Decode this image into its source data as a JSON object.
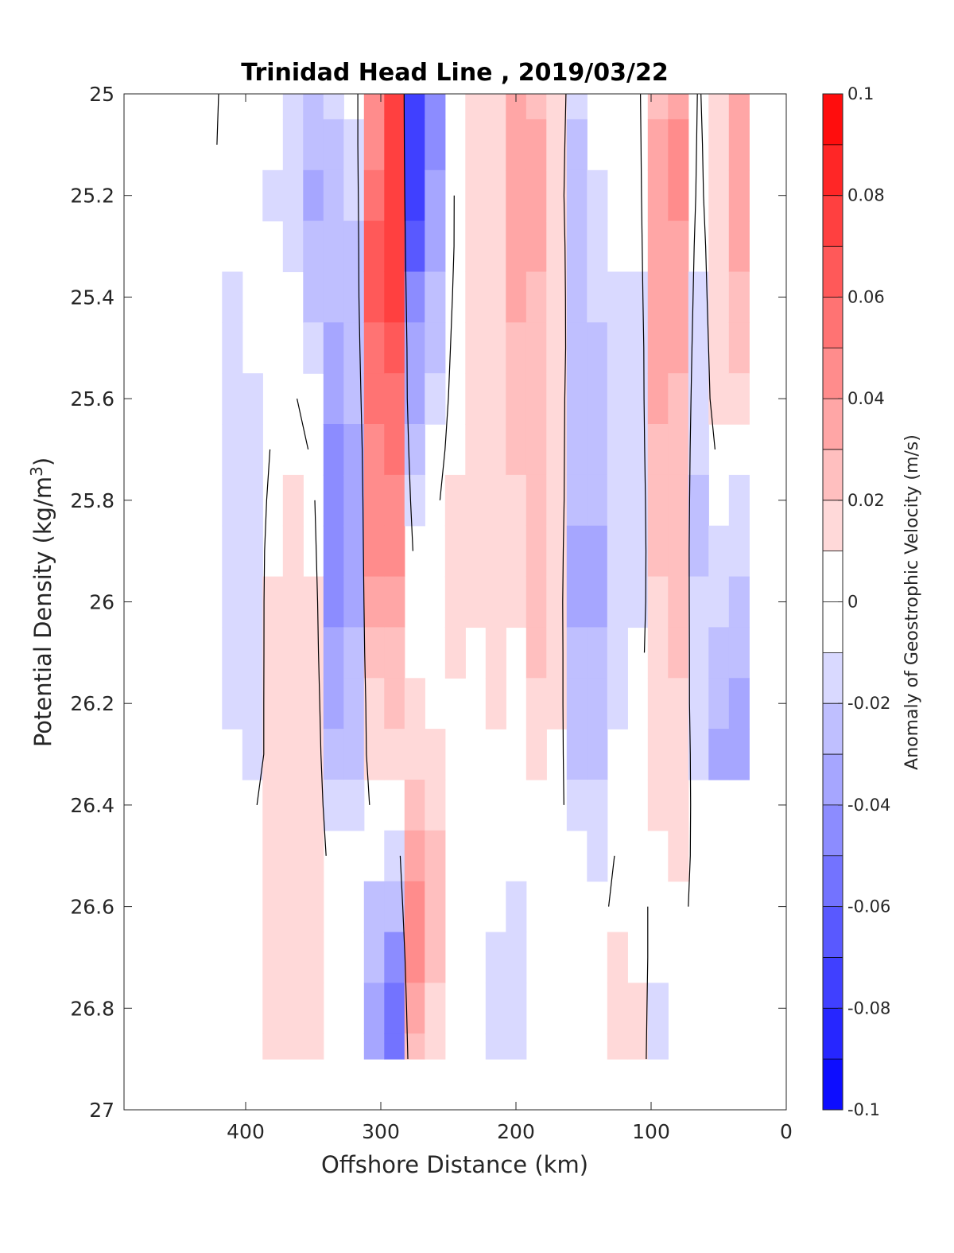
{
  "chart_data": {
    "type": "heatmap",
    "subtype": "filled-contour",
    "title": "Trinidad Head Line , 2019/03/22",
    "xlabel": "Offshore Distance (km)",
    "ylabel": "Potential Density (kg/m3)",
    "ylabel_parts": [
      "Potential Density (kg/m",
      "3",
      ")"
    ],
    "xlim": [
      490,
      0
    ],
    "x_reversed": true,
    "ylim": [
      25,
      27
    ],
    "y_reversed": true,
    "x_ticks": [
      400,
      300,
      200,
      100,
      0
    ],
    "x_tick_labels": [
      "400",
      "300",
      "200",
      "100",
      "0"
    ],
    "y_ticks": [
      25,
      25.2,
      25.4,
      25.6,
      25.8,
      26,
      26.2,
      26.4,
      26.6,
      26.8,
      27
    ],
    "y_tick_labels": [
      "25",
      "25.2",
      "25.4",
      "25.6",
      "25.8",
      "26",
      "26.2",
      "26.4",
      "26.6",
      "26.8",
      "27"
    ],
    "grid": false,
    "colorbar": {
      "label": "Anomaly of Geostrophic Velocity (m/s)",
      "range": [
        -0.1,
        0.1
      ],
      "levels": [
        -0.1,
        -0.09,
        -0.08,
        -0.07,
        -0.06,
        -0.05,
        -0.04,
        -0.03,
        -0.02,
        -0.01,
        0,
        0.01,
        0.02,
        0.03,
        0.04,
        0.05,
        0.06,
        0.07,
        0.08,
        0.09,
        0.1
      ],
      "tick_values": [
        0.1,
        0.08,
        0.06,
        0.04,
        0.02,
        0,
        -0.02,
        -0.04,
        -0.06,
        -0.08,
        -0.1
      ],
      "tick_labels": [
        "0.1",
        "0.08",
        "0.06",
        "0.04",
        "0.02",
        "0",
        "-0.02",
        "-0.04",
        "-0.06",
        "-0.08",
        "-0.1"
      ],
      "colormap": "blue-white-red",
      "color_low": "#0000ff",
      "color_mid": "#ffffff",
      "color_high": "#ff0000"
    },
    "data_extent": {
      "x": [
        440,
        30
      ],
      "y": [
        25,
        26.9
      ]
    },
    "x": [
      440,
      425,
      410,
      395,
      380,
      365,
      350,
      335,
      320,
      305,
      290,
      275,
      260,
      245,
      230,
      215,
      200,
      185,
      170,
      155,
      140,
      125,
      110,
      95,
      80,
      65,
      50,
      35
    ],
    "y": [
      25.0,
      25.1,
      25.2,
      25.3,
      25.4,
      25.5,
      25.6,
      25.7,
      25.8,
      25.9,
      26.0,
      26.1,
      26.2,
      26.3,
      26.4,
      26.5,
      26.6,
      26.7,
      26.8,
      26.9
    ],
    "column_profiles_note": "",
    "velocity_anomaly": [
      [
        0.008,
        0.008,
        0.008,
        0.008,
        0.008,
        0.006,
        0.004,
        0.002,
        0.0,
        0.0,
        0.0,
        0.0,
        0.0,
        0.0,
        0.0,
        0.0,
        0.0,
        0.0,
        0.0,
        0.0
      ],
      [
        0.002,
        0.002,
        0.0,
        0.0,
        0.0,
        0.0,
        0.0,
        0.0,
        0.0,
        0.0,
        0.0,
        0.0,
        0.0,
        0.002,
        0.004,
        0.006,
        0.006,
        0.004,
        0.002,
        0.0
      ],
      [
        -0.004,
        -0.006,
        -0.008,
        -0.01,
        -0.012,
        -0.014,
        -0.015,
        -0.015,
        -0.016,
        -0.016,
        -0.016,
        -0.015,
        -0.014,
        -0.005,
        0.0,
        0.0,
        0.002,
        0.004,
        0.004,
        0.004
      ],
      [
        0.0,
        0.0,
        -0.002,
        -0.005,
        -0.008,
        -0.01,
        -0.012,
        -0.013,
        -0.014,
        -0.015,
        -0.016,
        -0.017,
        -0.018,
        -0.018,
        -0.004,
        0.006,
        0.008,
        0.008,
        0.006,
        0.004
      ],
      [
        -0.004,
        -0.008,
        -0.012,
        -0.008,
        0.0,
        0.0,
        0.0,
        0.002,
        0.006,
        0.01,
        0.012,
        0.013,
        0.014,
        0.014,
        0.014,
        0.015,
        0.015,
        0.014,
        0.014,
        0.014
      ],
      [
        -0.012,
        -0.014,
        -0.016,
        -0.012,
        -0.008,
        0.0,
        0.002,
        0.006,
        0.014,
        0.018,
        0.018,
        0.018,
        0.018,
        0.017,
        0.016,
        0.016,
        0.016,
        0.015,
        0.014,
        0.016
      ],
      [
        -0.026,
        -0.03,
        -0.032,
        -0.028,
        -0.022,
        -0.014,
        -0.008,
        -0.002,
        0.004,
        0.008,
        0.012,
        0.014,
        0.016,
        0.016,
        0.015,
        0.014,
        0.013,
        0.013,
        0.012,
        0.012
      ],
      [
        -0.016,
        -0.02,
        -0.024,
        -0.026,
        -0.028,
        -0.032,
        -0.038,
        -0.044,
        -0.046,
        -0.046,
        -0.044,
        -0.04,
        -0.034,
        -0.026,
        -0.016,
        -0.008,
        0.0,
        0.002,
        0.004,
        0.004
      ],
      [
        -0.01,
        -0.012,
        -0.016,
        -0.02,
        -0.022,
        -0.026,
        -0.03,
        -0.034,
        -0.036,
        -0.036,
        -0.034,
        -0.03,
        -0.026,
        -0.02,
        -0.014,
        -0.006,
        0.0,
        0.0,
        0.0,
        0.0
      ],
      [
        0.04,
        0.048,
        0.056,
        0.062,
        0.064,
        0.06,
        0.054,
        0.048,
        0.044,
        0.04,
        0.034,
        0.026,
        0.018,
        0.012,
        0.004,
        -0.008,
        -0.02,
        -0.028,
        -0.034,
        -0.036
      ],
      [
        0.074,
        0.076,
        0.076,
        0.074,
        0.07,
        0.066,
        0.06,
        0.054,
        0.048,
        0.044,
        0.036,
        0.028,
        0.02,
        0.012,
        0.006,
        -0.014,
        -0.03,
        -0.044,
        -0.052,
        -0.056
      ],
      [
        -0.08,
        -0.078,
        -0.072,
        -0.062,
        -0.05,
        -0.04,
        -0.034,
        -0.022,
        -0.012,
        -0.004,
        0.0,
        0.006,
        0.014,
        0.018,
        0.026,
        0.034,
        0.042,
        0.04,
        0.034,
        0.028
      ],
      [
        -0.05,
        -0.046,
        -0.04,
        -0.034,
        -0.026,
        -0.02,
        -0.016,
        -0.01,
        -0.004,
        0.0,
        0.0,
        0.004,
        0.01,
        0.014,
        0.018,
        0.02,
        0.022,
        0.02,
        0.016,
        0.014
      ],
      [
        0.0,
        0.0,
        0.002,
        0.002,
        0.004,
        0.006,
        0.008,
        0.01,
        0.012,
        0.014,
        0.016,
        0.014,
        0.008,
        0.002,
        0.0,
        0.0,
        0.0,
        0.0,
        0.0,
        0.0
      ],
      [
        0.016,
        0.014,
        0.016,
        0.018,
        0.018,
        0.018,
        0.018,
        0.018,
        0.016,
        0.014,
        0.012,
        0.008,
        0.004,
        0.0,
        0.0,
        0.0,
        0.0,
        -0.004,
        -0.006,
        -0.008
      ],
      [
        0.018,
        0.018,
        0.016,
        0.016,
        0.016,
        0.016,
        0.018,
        0.016,
        0.014,
        0.014,
        0.014,
        0.012,
        0.012,
        0.008,
        0.0,
        -0.006,
        -0.01,
        -0.014,
        -0.016,
        -0.016
      ],
      [
        0.03,
        0.034,
        0.036,
        0.034,
        0.03,
        0.026,
        0.024,
        0.022,
        0.018,
        0.014,
        0.012,
        0.01,
        0.004,
        0.0,
        0.0,
        -0.006,
        -0.012,
        -0.016,
        -0.018,
        -0.016
      ],
      [
        0.028,
        0.03,
        0.032,
        0.03,
        0.026,
        0.024,
        0.022,
        0.022,
        0.024,
        0.024,
        0.022,
        0.02,
        0.018,
        0.016,
        0.01,
        0.002,
        0.0,
        -0.004,
        -0.008,
        -0.01
      ],
      [
        0.014,
        0.014,
        0.014,
        0.016,
        0.016,
        0.018,
        0.018,
        0.018,
        0.018,
        0.016,
        0.014,
        0.014,
        0.012,
        0.01,
        0.008,
        0.0,
        0.0,
        0.0,
        0.0,
        0.0
      ],
      [
        -0.016,
        -0.02,
        -0.024,
        -0.022,
        -0.02,
        -0.022,
        -0.026,
        -0.028,
        -0.03,
        -0.032,
        -0.032,
        -0.03,
        -0.026,
        -0.02,
        -0.014,
        -0.004,
        0.0,
        0.0,
        0.0,
        0.0
      ],
      [
        -0.008,
        -0.01,
        -0.012,
        -0.014,
        -0.016,
        -0.02,
        -0.024,
        -0.028,
        -0.03,
        -0.032,
        -0.032,
        -0.03,
        -0.026,
        -0.02,
        -0.014,
        -0.012,
        -0.008,
        0.0,
        0.0,
        0.0
      ],
      [
        -0.006,
        -0.008,
        -0.01,
        -0.01,
        -0.012,
        -0.014,
        -0.016,
        -0.016,
        -0.018,
        -0.018,
        -0.018,
        -0.016,
        -0.012,
        -0.008,
        0.0,
        0.002,
        0.006,
        0.014,
        0.018,
        0.018
      ],
      [
        -0.004,
        -0.006,
        -0.008,
        -0.01,
        -0.012,
        -0.014,
        -0.014,
        -0.014,
        -0.014,
        -0.014,
        -0.012,
        -0.008,
        0.0,
        0.0,
        0.0,
        0.0,
        0.004,
        0.01,
        0.012,
        0.012
      ],
      [
        0.024,
        0.03,
        0.034,
        0.034,
        0.034,
        0.032,
        0.03,
        0.026,
        0.022,
        0.02,
        0.018,
        0.016,
        0.016,
        0.016,
        0.014,
        0.004,
        -0.004,
        -0.01,
        -0.014,
        -0.016
      ],
      [
        0.036,
        0.04,
        0.04,
        0.038,
        0.034,
        0.03,
        0.028,
        0.026,
        0.026,
        0.024,
        0.022,
        0.02,
        0.018,
        0.018,
        0.016,
        0.012,
        0.006,
        0.0,
        0.0,
        0.0
      ],
      [
        -0.002,
        -0.004,
        -0.006,
        -0.01,
        -0.012,
        -0.014,
        -0.016,
        -0.018,
        -0.02,
        -0.02,
        -0.018,
        -0.016,
        -0.014,
        -0.012,
        -0.01,
        -0.008,
        -0.006,
        -0.004,
        -0.002,
        0.0
      ],
      [
        0.014,
        0.016,
        0.018,
        0.018,
        0.016,
        0.014,
        0.012,
        0.004,
        -0.008,
        -0.014,
        -0.018,
        -0.022,
        -0.028,
        -0.032,
        0.0,
        0.0,
        0.0,
        0.0,
        0.0,
        0.0
      ],
      [
        0.034,
        0.034,
        0.032,
        0.03,
        0.026,
        0.02,
        0.014,
        0.0,
        -0.012,
        -0.018,
        -0.026,
        -0.03,
        -0.034,
        -0.032,
        0.0,
        0.0,
        0.0,
        0.0,
        0.0,
        0.0
      ]
    ]
  }
}
